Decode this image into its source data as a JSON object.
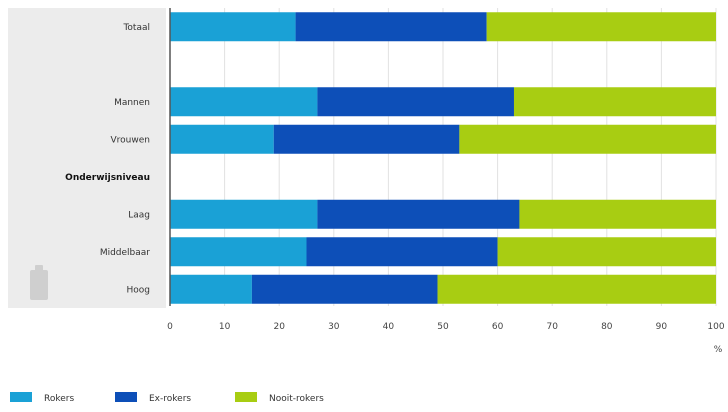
{
  "chart_data": {
    "type": "bar",
    "orientation": "horizontal",
    "stacked": true,
    "title": "",
    "xlabel": "%",
    "ylabel": "",
    "xlim": [
      0,
      100
    ],
    "xticks": [
      "0",
      "10",
      "20",
      "30",
      "40",
      "50",
      "60",
      "70",
      "80",
      "90",
      "100"
    ],
    "grid": true,
    "legend_position": "bottom-left",
    "rows": [
      {
        "label": "Totaal",
        "type": "data"
      },
      {
        "label": "",
        "type": "spacer"
      },
      {
        "label": "Mannen",
        "type": "data"
      },
      {
        "label": "Vrouwen",
        "type": "data"
      },
      {
        "label": "Onderwijsniveau",
        "type": "group"
      },
      {
        "label": "Laag",
        "type": "data"
      },
      {
        "label": "Middelbaar",
        "type": "data"
      },
      {
        "label": "Hoog",
        "type": "data"
      }
    ],
    "categories": [
      "Totaal",
      "Mannen",
      "Vrouwen",
      "Laag",
      "Middelbaar",
      "Hoog"
    ],
    "series": [
      {
        "name": "Rokers",
        "color": "#1aa1d6",
        "values": [
          23,
          27,
          19,
          27,
          25,
          15
        ]
      },
      {
        "name": "Ex-rokers",
        "color": "#0d4fb8",
        "values": [
          35,
          36,
          34,
          37,
          35,
          34
        ]
      },
      {
        "name": "Nooit-rokers",
        "color": "#a8cd12",
        "values": [
          42,
          37,
          47,
          36,
          40,
          51
        ]
      }
    ]
  }
}
